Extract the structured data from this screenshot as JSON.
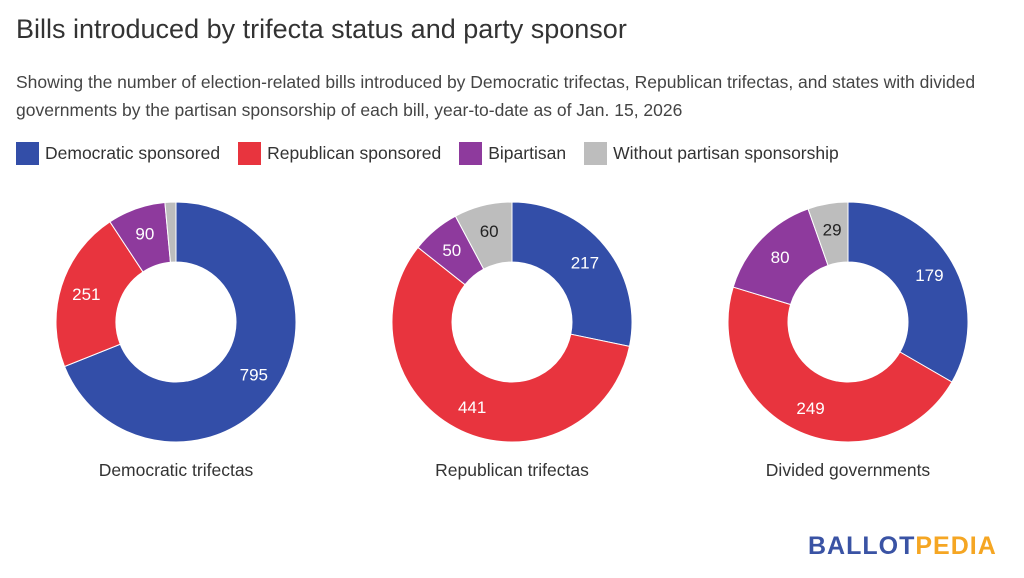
{
  "title": "Bills introduced by trifecta status and party sponsor",
  "subtitle": "Showing the number of election-related bills introduced by Democratic trifectas, Republican trifectas, and states with divided governments by the partisan sponsorship of each bill, year-to-date as of Jan. 15, 2026",
  "colors": {
    "democratic": "#334ea8",
    "republican": "#e8343e",
    "bipartisan": "#8e3a9d",
    "none": "#bdbdbd"
  },
  "logo": {
    "part1": "BALLOT",
    "part2": "PEDIA"
  },
  "chart_data": {
    "type": "pie",
    "variant": "donut",
    "title": "Bills introduced by trifecta status and party sponsor",
    "legend": [
      "Democratic sponsored",
      "Republican sponsored",
      "Bipartisan",
      "Without partisan sponsorship"
    ],
    "legend_position": "top-left",
    "charts": [
      {
        "name": "Democratic trifectas",
        "slices": [
          {
            "label": "Democratic sponsored",
            "value": 795,
            "shown": true
          },
          {
            "label": "Republican sponsored",
            "value": 251,
            "shown": true
          },
          {
            "label": "Bipartisan",
            "value": 90,
            "shown": true
          },
          {
            "label": "Without partisan sponsorship",
            "value": 17,
            "shown": false
          }
        ]
      },
      {
        "name": "Republican trifectas",
        "slices": [
          {
            "label": "Democratic sponsored",
            "value": 217,
            "shown": true
          },
          {
            "label": "Republican sponsored",
            "value": 441,
            "shown": true
          },
          {
            "label": "Bipartisan",
            "value": 50,
            "shown": true
          },
          {
            "label": "Without partisan sponsorship",
            "value": 60,
            "shown": true
          }
        ]
      },
      {
        "name": "Divided governments",
        "slices": [
          {
            "label": "Democratic sponsored",
            "value": 179,
            "shown": true
          },
          {
            "label": "Republican sponsored",
            "value": 249,
            "shown": true
          },
          {
            "label": "Bipartisan",
            "value": 80,
            "shown": true
          },
          {
            "label": "Without partisan sponsorship",
            "value": 29,
            "shown": true
          }
        ]
      }
    ]
  }
}
